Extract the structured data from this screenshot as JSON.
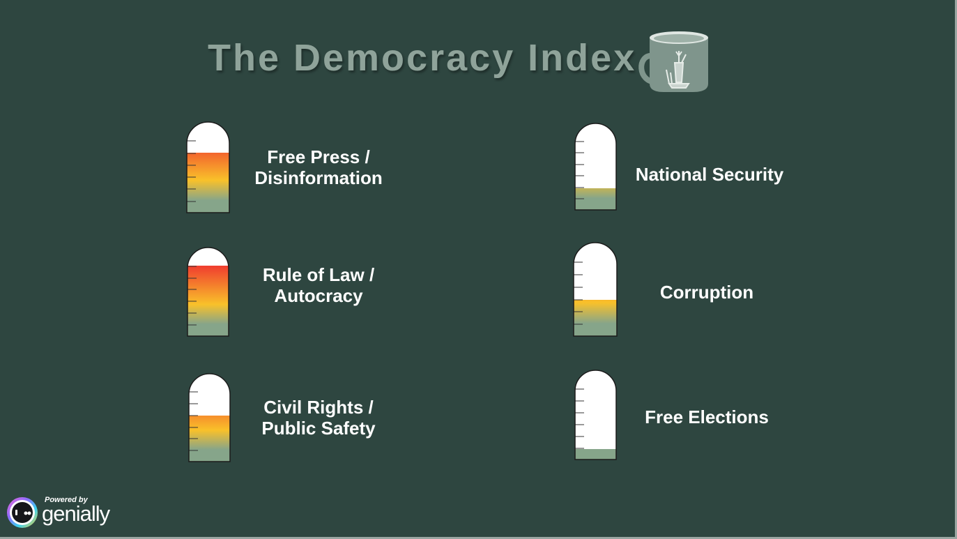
{
  "title": "The Democracy Index",
  "gauges": [
    {
      "id": "free-press",
      "label_lines": [
        "Free Press /",
        "Disinformation"
      ],
      "level": 0.66
    },
    {
      "id": "rule-of-law",
      "label_lines": [
        "Rule of Law /",
        "Autocracy"
      ],
      "level": 0.79
    },
    {
      "id": "civil-rights",
      "label_lines": [
        "Civil Rights /",
        "Public Safety"
      ],
      "level": 0.52
    },
    {
      "id": "national-security",
      "label_lines": [
        "National Security"
      ],
      "level": 0.25
    },
    {
      "id": "corruption",
      "label_lines": [
        "Corruption"
      ],
      "level": 0.39
    },
    {
      "id": "free-elections",
      "label_lines": [
        "Free Elections"
      ],
      "level": 0.12
    }
  ],
  "colors": {
    "background": "#2e4640",
    "fill_top": "#f0402f",
    "fill_mid": "#f9c12a",
    "fill_bottom": "#86a58a",
    "tube": "#ffffff"
  },
  "branding": {
    "powered_by": "Powered by",
    "name": "genially"
  }
}
